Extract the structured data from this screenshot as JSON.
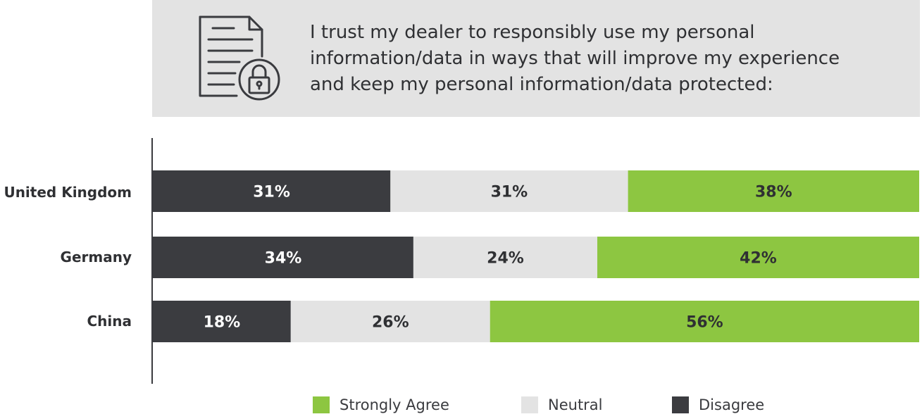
{
  "header": {
    "question_lines": [
      "I trust my dealer to responsibly use my personal",
      "information/data in ways that will improve my experience",
      "and keep my personal information/data protected:"
    ],
    "icon": "document-lock-icon"
  },
  "colors": {
    "disagree": "#3b3c40",
    "neutral": "#e3e3e3",
    "strongly_agree": "#8dc641",
    "header_bg": "#e3e3e3",
    "label_light": "#ffffff",
    "label_dark": "#2f3033"
  },
  "legend": {
    "items": [
      {
        "key": "strongly_agree",
        "label": "Strongly Agree"
      },
      {
        "key": "neutral",
        "label": "Neutral"
      },
      {
        "key": "disagree",
        "label": "Disagree"
      }
    ]
  },
  "chart_data": {
    "type": "bar",
    "orientation": "horizontal",
    "stacked": true,
    "categories": [
      "United Kingdom",
      "Germany",
      "China"
    ],
    "series": [
      {
        "name": "Disagree",
        "values": [
          31,
          34,
          18
        ],
        "labels": [
          "31%",
          "34%",
          "18%"
        ]
      },
      {
        "name": "Neutral",
        "values": [
          31,
          24,
          26
        ],
        "labels": [
          "31%",
          "24%",
          "26%"
        ]
      },
      {
        "name": "Strongly Agree",
        "values": [
          38,
          42,
          56
        ],
        "labels": [
          "38%",
          "42%",
          "56%"
        ]
      }
    ],
    "xlim": [
      0,
      100
    ],
    "grid": false,
    "legend_position": "bottom-center"
  }
}
